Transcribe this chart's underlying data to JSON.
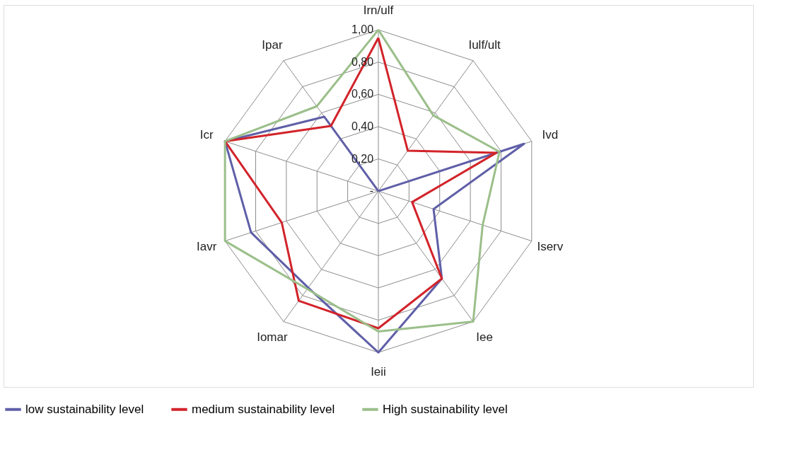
{
  "chart_data": {
    "type": "radar",
    "categories": [
      "Irn/ulf",
      "Iulf/ult",
      "Ivd",
      "Iserv",
      "Iee",
      "Ieii",
      "Iomar",
      "Iavr",
      "Icr",
      "Ipar"
    ],
    "series": [
      {
        "name": "low sustainability level",
        "color": "#5f5fa8",
        "values": [
          0,
          0,
          0.95,
          0.36,
          0.67,
          1.0,
          0.74,
          0.83,
          1.0,
          0.57
        ]
      },
      {
        "name": "medium sustainability level",
        "color": "#d2232a",
        "values": [
          0.95,
          0.31,
          0.77,
          0.22,
          0.67,
          0.85,
          0.84,
          0.63,
          1.0,
          0.5
        ]
      },
      {
        "name": "High sustainability level",
        "color": "#9bbf8a",
        "values": [
          1.0,
          0.58,
          0.79,
          0.68,
          1.0,
          0.87,
          0.75,
          1.0,
          1.0,
          0.65
        ]
      }
    ],
    "ylim": [
      0,
      1.0
    ],
    "yticks": [
      {
        "value": 0,
        "label": "-"
      },
      {
        "value": 0.2,
        "label": "0,20"
      },
      {
        "value": 0.4,
        "label": "0,40"
      },
      {
        "value": 0.6,
        "label": "0,60"
      },
      {
        "value": 0.8,
        "label": "0,80"
      },
      {
        "value": 1.0,
        "label": "1,00"
      }
    ],
    "grid": true,
    "legend": "bottom",
    "line_style": "solid",
    "marker": "none"
  }
}
